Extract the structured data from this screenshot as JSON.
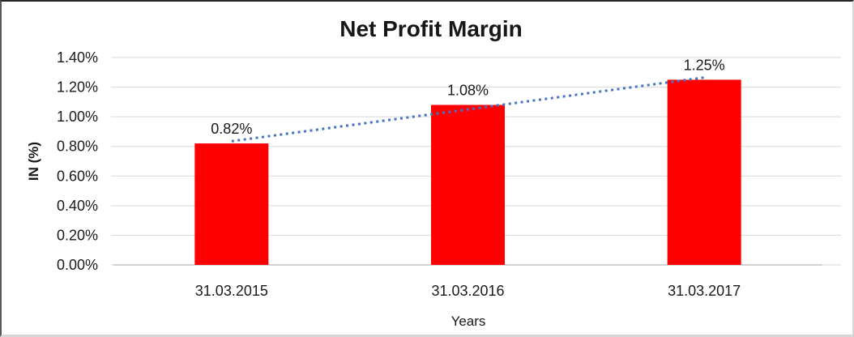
{
  "chart_data": {
    "type": "bar",
    "title": "Net Profit Margin",
    "xlabel": "Years",
    "ylabel": "IN (%)",
    "categories": [
      "31.03.2015",
      "31.03.2016",
      "31.03.2017"
    ],
    "values": [
      0.82,
      1.08,
      1.25
    ],
    "data_labels": [
      "0.82%",
      "1.08%",
      "1.25%"
    ],
    "ylim": [
      0,
      1.4
    ],
    "ytick_step": 0.2,
    "ytick_labels": [
      "0.00%",
      "0.20%",
      "0.40%",
      "0.60%",
      "0.80%",
      "1.00%",
      "1.20%",
      "1.40%"
    ],
    "grid": true,
    "legend": "none",
    "trendline": {
      "type": "linear",
      "style": "dotted"
    },
    "colors": {
      "bar": "#ff0000",
      "trendline": "#4472c4",
      "gridline": "#d9d9d9",
      "axis": "#c3c3c3",
      "text": "#1a1a1a"
    }
  }
}
